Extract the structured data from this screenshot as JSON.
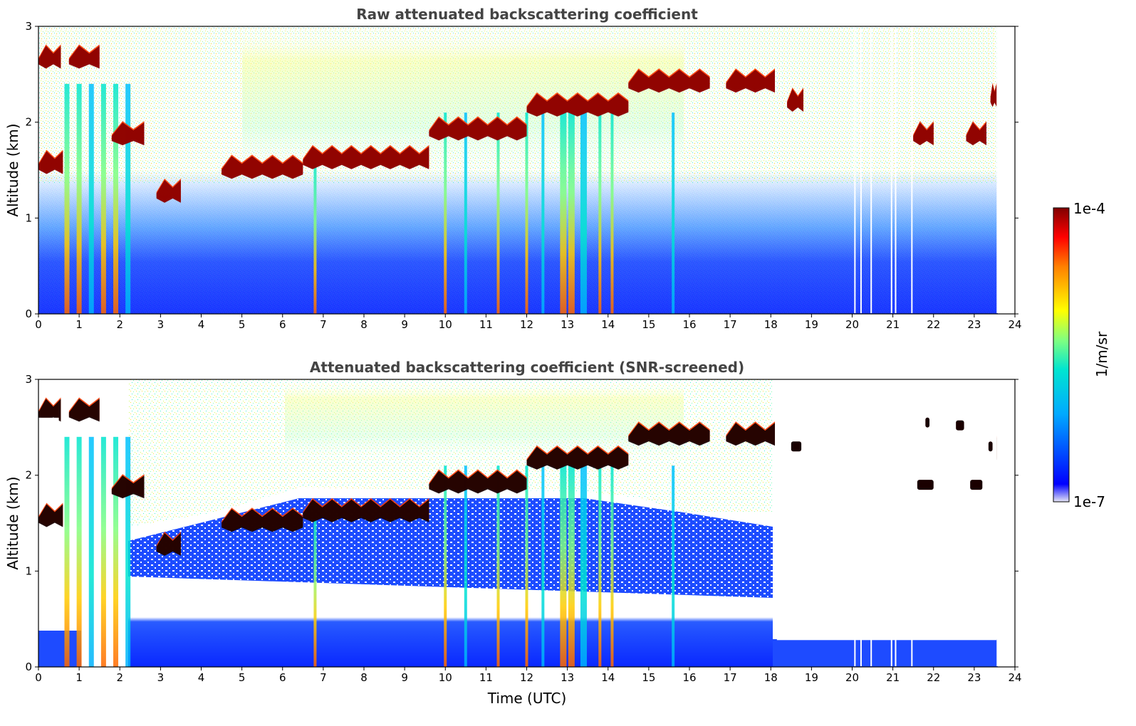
{
  "chart_data": [
    {
      "type": "heatmap",
      "title": "Raw attenuated backscattering coefficient",
      "xlabel": "",
      "ylabel": "Altitude (km)",
      "xlim": [
        0,
        24
      ],
      "ylim": [
        0,
        3
      ],
      "x_ticks": [
        "0",
        "1",
        "2",
        "3",
        "4",
        "5",
        "6",
        "7",
        "8",
        "9",
        "10",
        "11",
        "12",
        "13",
        "14",
        "15",
        "16",
        "17",
        "18",
        "19",
        "20",
        "21",
        "22",
        "23",
        "24"
      ],
      "y_ticks": [
        "0",
        "1",
        "2",
        "3"
      ],
      "data_end_time": 23.55,
      "cloud_layers": [
        {
          "t_start": 0.0,
          "t_end": 0.55,
          "alt_km": 2.7
        },
        {
          "t_start": 0.0,
          "t_end": 0.6,
          "alt_km": 1.6
        },
        {
          "t_start": 0.75,
          "t_end": 1.5,
          "alt_km": 2.7
        },
        {
          "t_start": 1.8,
          "t_end": 2.6,
          "alt_km": 1.9
        },
        {
          "t_start": 2.9,
          "t_end": 3.5,
          "alt_km": 1.3
        },
        {
          "t_start": 4.5,
          "t_end": 6.5,
          "alt_km": 1.55
        },
        {
          "t_start": 6.5,
          "t_end": 9.6,
          "alt_km": 1.65
        },
        {
          "t_start": 9.6,
          "t_end": 12.0,
          "alt_km": 1.95
        },
        {
          "t_start": 12.0,
          "t_end": 14.5,
          "alt_km": 2.2
        },
        {
          "t_start": 14.5,
          "t_end": 16.5,
          "alt_km": 2.45
        },
        {
          "t_start": 16.9,
          "t_end": 18.1,
          "alt_km": 2.45
        },
        {
          "t_start": 18.4,
          "t_end": 18.8,
          "alt_km": 2.25
        },
        {
          "t_start": 21.5,
          "t_end": 22.0,
          "alt_km": 1.9
        },
        {
          "t_start": 22.8,
          "t_end": 23.3,
          "alt_km": 1.9
        },
        {
          "t_start": 23.4,
          "t_end": 23.55,
          "alt_km": 2.3
        }
      ],
      "rain_shafts": [
        0.7,
        1.0,
        1.3,
        1.6,
        1.9,
        2.2,
        6.8,
        10.0,
        10.5,
        11.3,
        12.0,
        12.4,
        12.9,
        13.1,
        13.4,
        13.8,
        14.1,
        15.6
      ]
    },
    {
      "type": "heatmap",
      "title": "Attenuated backscattering coefficient (SNR-screened)",
      "xlabel": "Time (UTC)",
      "ylabel": "Altitude (km)",
      "xlim": [
        0,
        24
      ],
      "ylim": [
        0,
        3
      ],
      "x_ticks": [
        "0",
        "1",
        "2",
        "3",
        "4",
        "5",
        "6",
        "7",
        "8",
        "9",
        "10",
        "11",
        "12",
        "13",
        "14",
        "15",
        "16",
        "17",
        "18",
        "19",
        "20",
        "21",
        "22",
        "23",
        "24"
      ],
      "y_ticks": [
        "0",
        "1",
        "2",
        "3"
      ],
      "data_end_time": 23.55,
      "screened_noise_top_km_after_18h": 0.28
    }
  ],
  "colorbar": {
    "label": "1/m/sr",
    "max_label": "1e-4",
    "min_label": "1e-7",
    "colors": [
      "#e6e6f5",
      "#0000ff",
      "#00aaff",
      "#00e5d0",
      "#80ff80",
      "#ffff00",
      "#ff8000",
      "#ff0000",
      "#800000"
    ]
  }
}
